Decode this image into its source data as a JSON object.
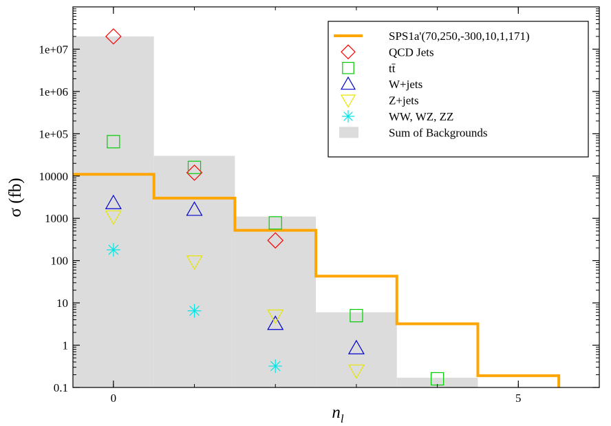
{
  "chart_data": {
    "type": "scatter",
    "title": "",
    "xlabel": "n",
    "xlabel_sub": "l",
    "ylabel": "σ (fb)",
    "y_scale": "log",
    "xlim": [
      -0.5,
      6
    ],
    "ylim": [
      0.1,
      100000000
    ],
    "x_ticks": [
      {
        "value": 0,
        "label": "0"
      },
      {
        "value": 5,
        "label": "5"
      }
    ],
    "y_ticks": [
      {
        "value": 0.1,
        "label": "0.1"
      },
      {
        "value": 1,
        "label": "1"
      },
      {
        "value": 10,
        "label": "10"
      },
      {
        "value": 100,
        "label": "100"
      },
      {
        "value": 1000,
        "label": "1000"
      },
      {
        "value": 10000,
        "label": "10000"
      },
      {
        "value": 100000,
        "label": "1e+05"
      },
      {
        "value": 1000000,
        "label": "1e+06"
      },
      {
        "value": 10000000,
        "label": "1e+07"
      }
    ],
    "grid": false,
    "legend_position": "top-right",
    "background_sum": {
      "name": "Sum of Backgrounds",
      "color": "#dcdcdc",
      "bins": [
        {
          "x0": -0.5,
          "x1": 0.5,
          "value": 20000000
        },
        {
          "x0": 0.5,
          "x1": 1.5,
          "value": 30000
        },
        {
          "x0": 1.5,
          "x1": 2.5,
          "value": 1100
        },
        {
          "x0": 2.5,
          "x1": 3.5,
          "value": 6
        },
        {
          "x0": 3.5,
          "x1": 4.5,
          "value": 0.17
        }
      ]
    },
    "signal": {
      "name": "SPS1a'(70,250,-300,10,1,171)",
      "color": "#ffa500",
      "bins": [
        {
          "x0": -0.5,
          "x1": 0.5,
          "value": 11000
        },
        {
          "x0": 0.5,
          "x1": 1.5,
          "value": 3000
        },
        {
          "x0": 1.5,
          "x1": 2.5,
          "value": 520
        },
        {
          "x0": 2.5,
          "x1": 3.5,
          "value": 43
        },
        {
          "x0": 3.5,
          "x1": 4.5,
          "value": 3.2
        },
        {
          "x0": 4.5,
          "x1": 5.5,
          "value": 0.19
        }
      ]
    },
    "series": [
      {
        "name": "QCD Jets",
        "marker": "diamond",
        "color": "#ff0000",
        "points": [
          {
            "x": 0,
            "y": 20000000
          },
          {
            "x": 1,
            "y": 12000
          },
          {
            "x": 2,
            "y": 300
          }
        ]
      },
      {
        "name": "tt̄",
        "marker": "square",
        "color": "#00cc00",
        "points": [
          {
            "x": 0,
            "y": 65000
          },
          {
            "x": 1,
            "y": 16000
          },
          {
            "x": 2,
            "y": 780
          },
          {
            "x": 3,
            "y": 5
          },
          {
            "x": 4,
            "y": 0.16
          }
        ]
      },
      {
        "name": "W+jets",
        "marker": "triangle-up",
        "color": "#0000cc",
        "points": [
          {
            "x": 0,
            "y": 2300
          },
          {
            "x": 1,
            "y": 1600
          },
          {
            "x": 2,
            "y": 3.2
          },
          {
            "x": 3,
            "y": 0.85
          }
        ]
      },
      {
        "name": "Z+jets",
        "marker": "triangle-down",
        "color": "#e6e600",
        "points": [
          {
            "x": 0,
            "y": 1100
          },
          {
            "x": 1,
            "y": 95
          },
          {
            "x": 2,
            "y": 5
          },
          {
            "x": 3,
            "y": 0.25
          }
        ]
      },
      {
        "name": "WW, WZ, ZZ",
        "marker": "asterisk",
        "color": "#00e5e5",
        "points": [
          {
            "x": 0,
            "y": 180
          },
          {
            "x": 1,
            "y": 6.5
          },
          {
            "x": 2,
            "y": 0.32
          }
        ]
      }
    ]
  }
}
